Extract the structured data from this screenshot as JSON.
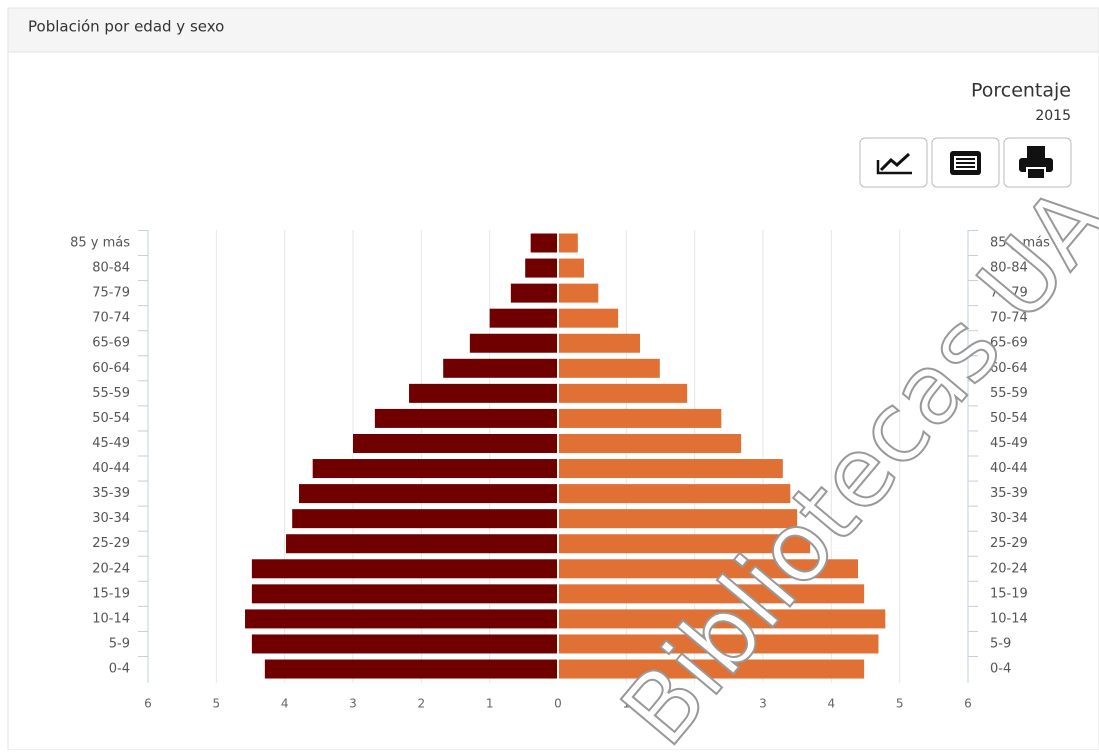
{
  "header": {
    "title": "Población por edad y sexo"
  },
  "chart_data": {
    "type": "pyramid",
    "title": "Porcentaje",
    "subtitle": "2015",
    "categories": [
      "85 y más",
      "80-84",
      "75-79",
      "70-74",
      "65-69",
      "60-64",
      "55-59",
      "50-54",
      "45-49",
      "40-44",
      "35-39",
      "30-34",
      "25-29",
      "20-24",
      "15-19",
      "10-14",
      "5-9",
      "0-4"
    ],
    "series": [
      {
        "color": "#700000",
        "values": [
          0.4,
          0.48,
          0.69,
          1.0,
          1.29,
          1.68,
          2.18,
          2.68,
          3.0,
          3.59,
          3.79,
          3.89,
          3.98,
          4.48,
          4.48,
          4.58,
          4.48,
          4.29
        ]
      },
      {
        "color": "#e07033",
        "values": [
          0.29,
          0.38,
          0.59,
          0.88,
          1.2,
          1.49,
          1.89,
          2.39,
          2.68,
          3.29,
          3.4,
          3.5,
          3.69,
          4.39,
          4.48,
          4.79,
          4.69,
          4.48
        ]
      }
    ],
    "xlim": [
      0,
      6
    ],
    "xticks": [
      0,
      1,
      2,
      3,
      4,
      5,
      6
    ],
    "grid": true
  },
  "watermark": "Bibliotecas UA"
}
